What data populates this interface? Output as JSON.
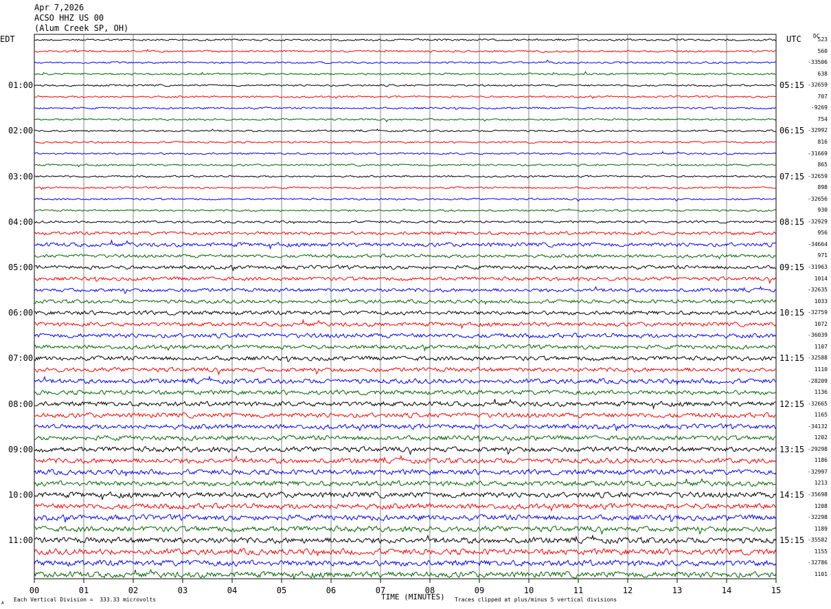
{
  "header": {
    "date": "Apr 7,2026",
    "station": "ACSO HHZ US 00",
    "location": "(Alum Creek SP, OH)"
  },
  "left_tz": "EDT",
  "right_tz": "UTC",
  "dc_label": "DC",
  "footer": {
    "scale": "Each Vertical Division =  333.33 microvolts",
    "clip": "Traces clipped at plus/minus 5 vertical divisions",
    "corner_mark": "A"
  },
  "colors": {
    "black": "#000000",
    "red": "#ff0000",
    "blue": "#0000ff",
    "green": "#006400"
  },
  "chart_data": {
    "type": "line",
    "xlabel": "TIME (MINUTES)",
    "x_ticks": [
      "00",
      "01",
      "02",
      "03",
      "04",
      "05",
      "06",
      "07",
      "08",
      "09",
      "10",
      "11",
      "12",
      "13",
      "14",
      "15"
    ],
    "xlim": [
      0,
      15
    ],
    "trace_colors_cycle": [
      "black",
      "red",
      "blue",
      "green"
    ],
    "left_hour_labels": [
      "01:00",
      "02:00",
      "03:00",
      "04:00",
      "05:00",
      "06:00",
      "07:00",
      "08:00",
      "09:00",
      "10:00",
      "11:00"
    ],
    "right_hour_labels": [
      "05:15",
      "06:15",
      "07:15",
      "08:15",
      "09:15",
      "10:15",
      "11:15",
      "12:15",
      "13:15",
      "14:15",
      "15:15"
    ],
    "trace_offsets": [
      "523",
      "560",
      "-33506",
      "638",
      "-32659",
      "707",
      "-9269",
      "754",
      "-32992",
      "816",
      "-31669",
      "865",
      "-32659",
      "898",
      "-32656",
      "930",
      "-32929",
      "956",
      "-34664",
      "971",
      "-31963",
      "1014",
      "-32635",
      "1033",
      "-32759",
      "1072",
      "-36039",
      "1107",
      "-32588",
      "1110",
      "-28209",
      "1136",
      "-32665",
      "1165",
      "-34132",
      "1202",
      "-29298",
      "1186",
      "-32997",
      "1213",
      "-35698",
      "1208",
      "-32298",
      "1189",
      "-35582",
      "1155",
      "-32786",
      "1101"
    ],
    "trace_amplitude_level": [
      0.5,
      0.5,
      0.5,
      0.5,
      0.5,
      0.5,
      0.5,
      0.5,
      0.5,
      0.5,
      0.5,
      0.5,
      0.5,
      0.5,
      0.5,
      0.5,
      0.6,
      0.9,
      1.1,
      0.9,
      1.0,
      1.0,
      1.0,
      1.0,
      1.1,
      1.1,
      1.2,
      1.1,
      1.2,
      1.2,
      1.3,
      1.2,
      1.3,
      1.3,
      1.3,
      1.3,
      1.4,
      1.4,
      1.4,
      1.4,
      1.5,
      1.5,
      1.5,
      1.5,
      1.6,
      1.6,
      1.6,
      1.6
    ]
  }
}
